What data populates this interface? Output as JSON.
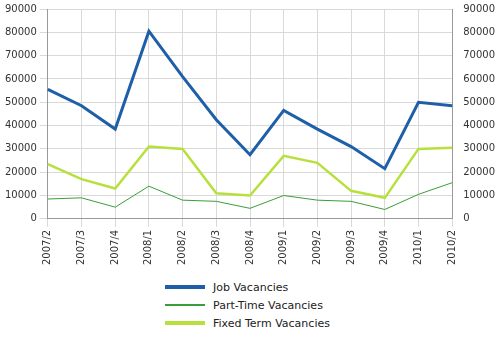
{
  "chart_data": {
    "type": "line",
    "categories": [
      "2007/2",
      "2007/3",
      "2007/4",
      "2008/1",
      "2008/2",
      "2008/3",
      "2008/4",
      "2009/1",
      "2009/2",
      "2009/3",
      "2009/4",
      "2010/1",
      "2010/2"
    ],
    "series": [
      {
        "name": "Job Vacancies",
        "color": "#1f5fa8",
        "values": [
          55500,
          48500,
          38500,
          80500,
          61000,
          42500,
          27500,
          46500,
          38500,
          31000,
          21500,
          50000,
          48500
        ]
      },
      {
        "name": "Part-Time Vacancies",
        "color": "#3a9e3a",
        "values": [
          8500,
          9000,
          5000,
          14000,
          8000,
          7500,
          4500,
          10000,
          8000,
          7500,
          4000,
          10500,
          15500
        ]
      },
      {
        "name": "Fixed Term Vacancies",
        "color": "#b8e03c",
        "values": [
          23500,
          17000,
          13000,
          31000,
          30000,
          11000,
          10000,
          27000,
          24000,
          12000,
          9000,
          30000,
          30500
        ]
      }
    ],
    "ylim": [
      0,
      90000
    ],
    "yticks": [
      0,
      10000,
      20000,
      30000,
      40000,
      50000,
      60000,
      70000,
      80000,
      90000
    ],
    "y2lim": [
      0,
      90000
    ],
    "y2ticks": [
      0,
      10000,
      20000,
      30000,
      40000,
      50000,
      60000,
      70000,
      80000,
      90000
    ],
    "grid": true,
    "legend": "bottom"
  }
}
